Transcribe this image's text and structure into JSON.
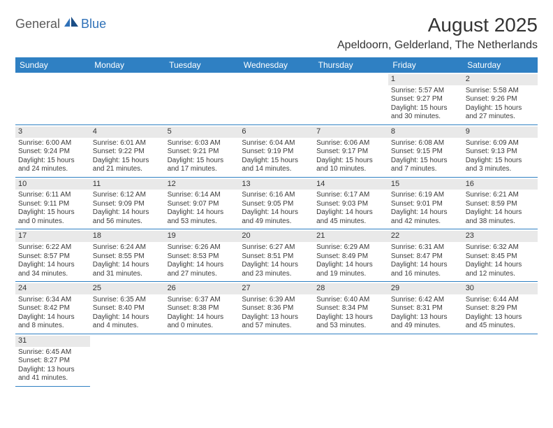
{
  "logo": {
    "part1": "General",
    "part2": "Blue"
  },
  "title": "August 2025",
  "location": "Apeldoorn, Gelderland, The Netherlands",
  "colors": {
    "header_bg": "#2f80c3",
    "header_text": "#ffffff",
    "daynum_bg": "#e9e9e9",
    "row_border": "#2f80c3",
    "logo_blue": "#2f71b8",
    "logo_gray": "#5a5a5a"
  },
  "day_headers": [
    "Sunday",
    "Monday",
    "Tuesday",
    "Wednesday",
    "Thursday",
    "Friday",
    "Saturday"
  ],
  "weeks": [
    [
      null,
      null,
      null,
      null,
      null,
      {
        "n": "1",
        "sr": "5:57 AM",
        "ss": "9:27 PM",
        "d1": "15 hours",
        "d2": "and 30 minutes."
      },
      {
        "n": "2",
        "sr": "5:58 AM",
        "ss": "9:26 PM",
        "d1": "15 hours",
        "d2": "and 27 minutes."
      }
    ],
    [
      {
        "n": "3",
        "sr": "6:00 AM",
        "ss": "9:24 PM",
        "d1": "15 hours",
        "d2": "and 24 minutes."
      },
      {
        "n": "4",
        "sr": "6:01 AM",
        "ss": "9:22 PM",
        "d1": "15 hours",
        "d2": "and 21 minutes."
      },
      {
        "n": "5",
        "sr": "6:03 AM",
        "ss": "9:21 PM",
        "d1": "15 hours",
        "d2": "and 17 minutes."
      },
      {
        "n": "6",
        "sr": "6:04 AM",
        "ss": "9:19 PM",
        "d1": "15 hours",
        "d2": "and 14 minutes."
      },
      {
        "n": "7",
        "sr": "6:06 AM",
        "ss": "9:17 PM",
        "d1": "15 hours",
        "d2": "and 10 minutes."
      },
      {
        "n": "8",
        "sr": "6:08 AM",
        "ss": "9:15 PM",
        "d1": "15 hours",
        "d2": "and 7 minutes."
      },
      {
        "n": "9",
        "sr": "6:09 AM",
        "ss": "9:13 PM",
        "d1": "15 hours",
        "d2": "and 3 minutes."
      }
    ],
    [
      {
        "n": "10",
        "sr": "6:11 AM",
        "ss": "9:11 PM",
        "d1": "15 hours",
        "d2": "and 0 minutes."
      },
      {
        "n": "11",
        "sr": "6:12 AM",
        "ss": "9:09 PM",
        "d1": "14 hours",
        "d2": "and 56 minutes."
      },
      {
        "n": "12",
        "sr": "6:14 AM",
        "ss": "9:07 PM",
        "d1": "14 hours",
        "d2": "and 53 minutes."
      },
      {
        "n": "13",
        "sr": "6:16 AM",
        "ss": "9:05 PM",
        "d1": "14 hours",
        "d2": "and 49 minutes."
      },
      {
        "n": "14",
        "sr": "6:17 AM",
        "ss": "9:03 PM",
        "d1": "14 hours",
        "d2": "and 45 minutes."
      },
      {
        "n": "15",
        "sr": "6:19 AM",
        "ss": "9:01 PM",
        "d1": "14 hours",
        "d2": "and 42 minutes."
      },
      {
        "n": "16",
        "sr": "6:21 AM",
        "ss": "8:59 PM",
        "d1": "14 hours",
        "d2": "and 38 minutes."
      }
    ],
    [
      {
        "n": "17",
        "sr": "6:22 AM",
        "ss": "8:57 PM",
        "d1": "14 hours",
        "d2": "and 34 minutes."
      },
      {
        "n": "18",
        "sr": "6:24 AM",
        "ss": "8:55 PM",
        "d1": "14 hours",
        "d2": "and 31 minutes."
      },
      {
        "n": "19",
        "sr": "6:26 AM",
        "ss": "8:53 PM",
        "d1": "14 hours",
        "d2": "and 27 minutes."
      },
      {
        "n": "20",
        "sr": "6:27 AM",
        "ss": "8:51 PM",
        "d1": "14 hours",
        "d2": "and 23 minutes."
      },
      {
        "n": "21",
        "sr": "6:29 AM",
        "ss": "8:49 PM",
        "d1": "14 hours",
        "d2": "and 19 minutes."
      },
      {
        "n": "22",
        "sr": "6:31 AM",
        "ss": "8:47 PM",
        "d1": "14 hours",
        "d2": "and 16 minutes."
      },
      {
        "n": "23",
        "sr": "6:32 AM",
        "ss": "8:45 PM",
        "d1": "14 hours",
        "d2": "and 12 minutes."
      }
    ],
    [
      {
        "n": "24",
        "sr": "6:34 AM",
        "ss": "8:42 PM",
        "d1": "14 hours",
        "d2": "and 8 minutes."
      },
      {
        "n": "25",
        "sr": "6:35 AM",
        "ss": "8:40 PM",
        "d1": "14 hours",
        "d2": "and 4 minutes."
      },
      {
        "n": "26",
        "sr": "6:37 AM",
        "ss": "8:38 PM",
        "d1": "14 hours",
        "d2": "and 0 minutes."
      },
      {
        "n": "27",
        "sr": "6:39 AM",
        "ss": "8:36 PM",
        "d1": "13 hours",
        "d2": "and 57 minutes."
      },
      {
        "n": "28",
        "sr": "6:40 AM",
        "ss": "8:34 PM",
        "d1": "13 hours",
        "d2": "and 53 minutes."
      },
      {
        "n": "29",
        "sr": "6:42 AM",
        "ss": "8:31 PM",
        "d1": "13 hours",
        "d2": "and 49 minutes."
      },
      {
        "n": "30",
        "sr": "6:44 AM",
        "ss": "8:29 PM",
        "d1": "13 hours",
        "d2": "and 45 minutes."
      }
    ],
    [
      {
        "n": "31",
        "sr": "6:45 AM",
        "ss": "8:27 PM",
        "d1": "13 hours",
        "d2": "and 41 minutes."
      },
      null,
      null,
      null,
      null,
      null,
      null
    ]
  ],
  "labels": {
    "sunrise": "Sunrise: ",
    "sunset": "Sunset: ",
    "daylight": "Daylight: "
  }
}
